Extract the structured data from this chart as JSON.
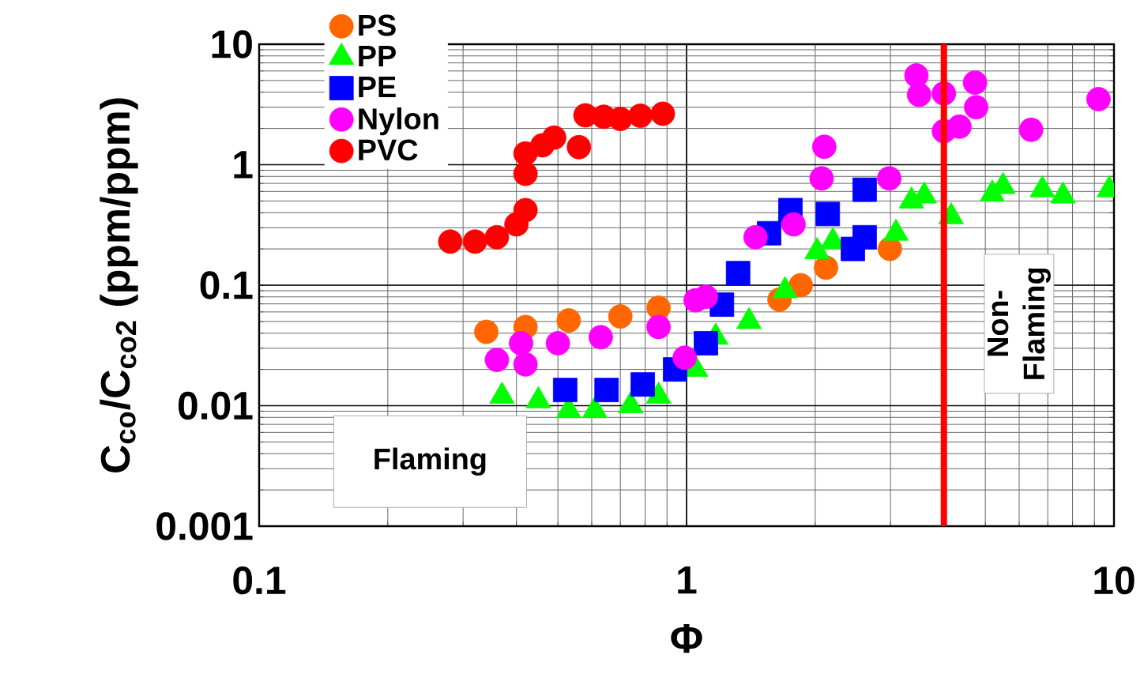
{
  "chart_data": {
    "type": "scatter",
    "xlabel": "Φ",
    "ylabel": "C$_{co}$/C$_{co2}$ (ppm/ppm)",
    "log": "xy",
    "grid": true,
    "legend": "top left",
    "xlim": [
      0.1,
      10
    ],
    "ylim": [
      0.001,
      10
    ],
    "xticks": [
      0.1,
      1,
      10
    ],
    "yticks": [
      0.001,
      0.01,
      0.1,
      1,
      10
    ],
    "ref_lines": [
      {
        "axis": "x",
        "value": 4.0,
        "color": "#ff0000"
      }
    ],
    "annotations": [
      "Flaming",
      "Non-Flaming"
    ],
    "series": [
      {
        "name": "PS",
        "color": "#ff6600",
        "marker": "circle",
        "x": [
          0.34,
          0.42,
          0.53,
          0.7,
          0.86,
          1.65,
          1.85,
          2.12,
          2.99
        ],
        "values": [
          0.041,
          0.045,
          0.051,
          0.055,
          0.065,
          0.076,
          0.1,
          0.14,
          0.2
        ]
      },
      {
        "name": "PP",
        "color": "#00ff00",
        "marker": "triangle",
        "x": [
          0.37,
          0.45,
          0.53,
          0.61,
          0.74,
          0.86,
          1.05,
          1.17,
          1.4,
          1.7,
          2.02,
          2.2,
          3.09,
          3.36,
          3.6,
          4.16,
          5.19,
          5.5,
          6.8,
          7.6,
          9.75
        ],
        "values": [
          0.012,
          0.011,
          0.0091,
          0.0091,
          0.01,
          0.012,
          0.02,
          0.037,
          0.05,
          0.09,
          0.19,
          0.23,
          0.27,
          0.5,
          0.55,
          0.37,
          0.57,
          0.66,
          0.62,
          0.55,
          0.62
        ]
      },
      {
        "name": "PE",
        "color": "#0000ff",
        "marker": "square",
        "x": [
          0.52,
          0.65,
          0.79,
          0.94,
          1.11,
          1.21,
          1.32,
          1.56,
          1.75,
          2.14,
          2.45,
          2.61,
          2.61
        ],
        "values": [
          0.0135,
          0.0135,
          0.015,
          0.02,
          0.033,
          0.069,
          0.126,
          0.27,
          0.42,
          0.39,
          0.2,
          0.25,
          0.62
        ]
      },
      {
        "name": "Nylon",
        "color": "#ff00ff",
        "marker": "circle",
        "x": [
          0.36,
          0.41,
          0.42,
          0.5,
          0.63,
          0.86,
          0.99,
          1.05,
          1.11,
          1.45,
          1.78,
          2.07,
          2.1,
          2.98,
          3.45,
          3.5,
          4.0,
          4.0,
          4.35,
          4.73,
          4.76,
          6.4,
          9.2
        ],
        "values": [
          0.024,
          0.033,
          0.022,
          0.033,
          0.037,
          0.045,
          0.025,
          0.075,
          0.08,
          0.25,
          0.32,
          0.77,
          1.41,
          0.77,
          5.5,
          3.8,
          3.9,
          1.9,
          2.07,
          4.8,
          3.0,
          1.95,
          3.5
        ]
      },
      {
        "name": "PVC",
        "color": "#ff0000",
        "marker": "circle",
        "x": [
          0.28,
          0.32,
          0.36,
          0.4,
          0.42,
          0.42,
          0.42,
          0.46,
          0.49,
          0.56,
          0.58,
          0.64,
          0.7,
          0.78,
          0.88
        ],
        "values": [
          0.23,
          0.23,
          0.25,
          0.32,
          0.42,
          0.84,
          1.24,
          1.45,
          1.68,
          1.4,
          2.57,
          2.5,
          2.4,
          2.55,
          2.65
        ]
      }
    ]
  }
}
